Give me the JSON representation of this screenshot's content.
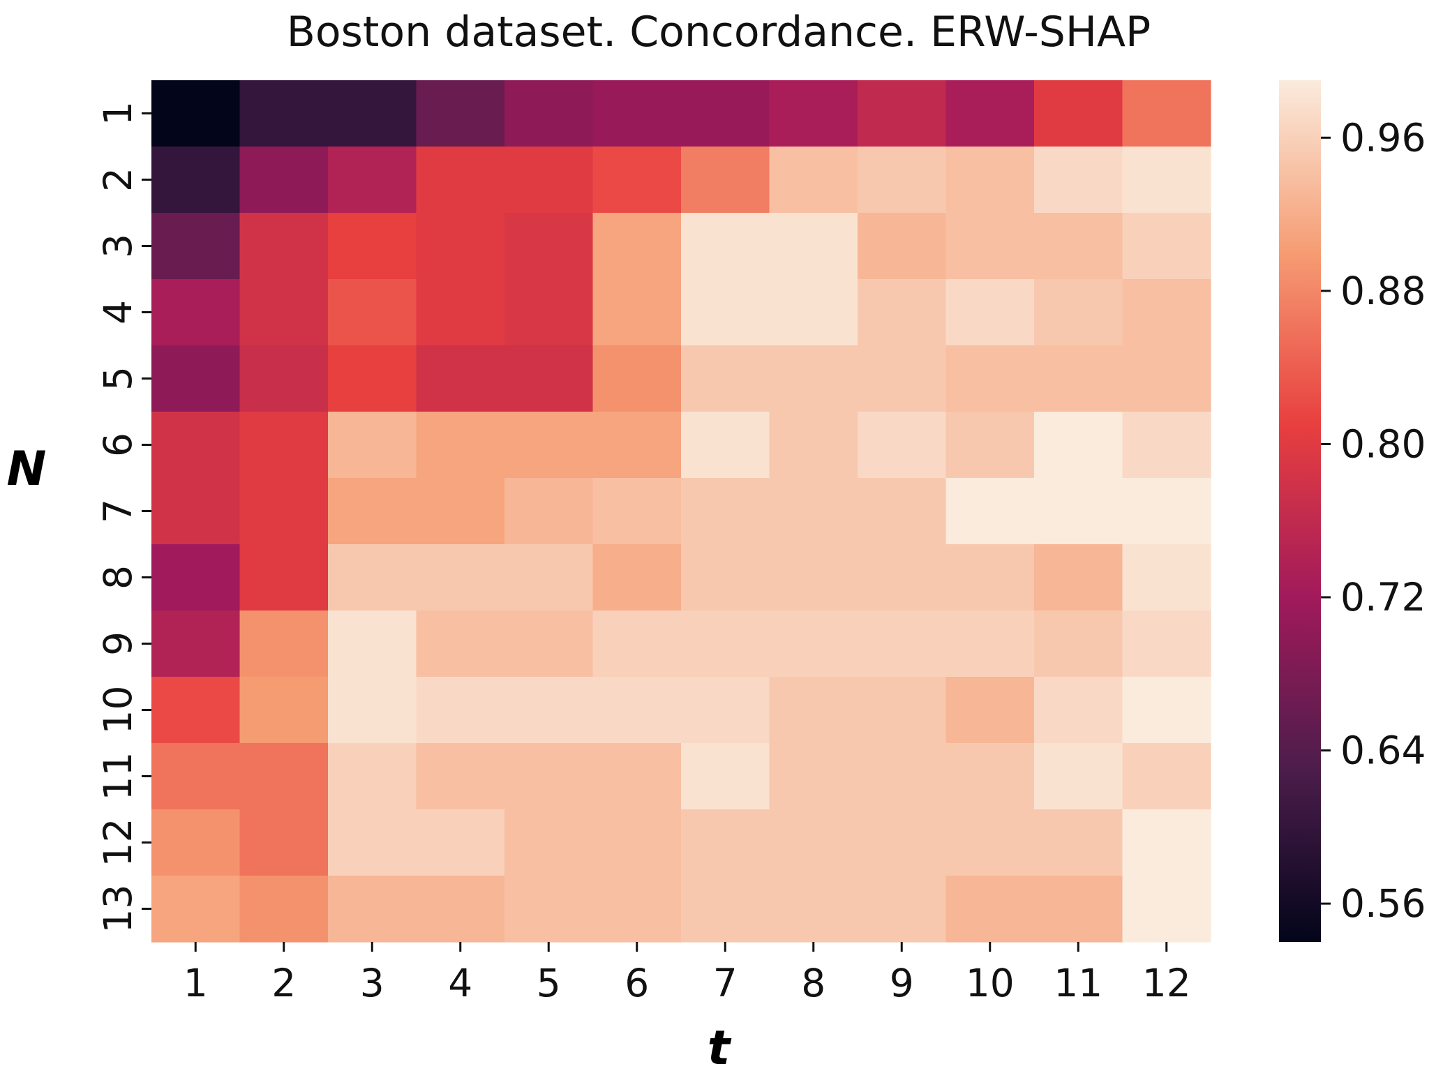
{
  "chart_data": {
    "type": "heatmap",
    "title": "Boston dataset. Concordance. ERW-SHAP",
    "xlabel": "t",
    "ylabel": "N",
    "x_categories": [
      "1",
      "2",
      "3",
      "4",
      "5",
      "6",
      "7",
      "8",
      "9",
      "10",
      "11",
      "12"
    ],
    "y_categories": [
      "1",
      "2",
      "3",
      "4",
      "5",
      "6",
      "7",
      "8",
      "9",
      "10",
      "11",
      "12",
      "13"
    ],
    "values": [
      [
        0.54,
        0.6,
        0.6,
        0.66,
        0.7,
        0.71,
        0.71,
        0.73,
        0.76,
        0.73,
        0.8,
        0.86
      ],
      [
        0.6,
        0.7,
        0.74,
        0.8,
        0.8,
        0.82,
        0.87,
        0.94,
        0.95,
        0.94,
        0.97,
        0.98
      ],
      [
        0.66,
        0.78,
        0.81,
        0.8,
        0.79,
        0.91,
        0.98,
        0.98,
        0.93,
        0.94,
        0.94,
        0.96
      ],
      [
        0.73,
        0.78,
        0.83,
        0.8,
        0.79,
        0.91,
        0.98,
        0.98,
        0.95,
        0.97,
        0.95,
        0.94
      ],
      [
        0.7,
        0.77,
        0.81,
        0.78,
        0.78,
        0.89,
        0.95,
        0.95,
        0.95,
        0.94,
        0.94,
        0.94
      ],
      [
        0.78,
        0.8,
        0.93,
        0.91,
        0.91,
        0.91,
        0.98,
        0.95,
        0.97,
        0.95,
        0.99,
        0.97
      ],
      [
        0.78,
        0.8,
        0.91,
        0.91,
        0.93,
        0.94,
        0.95,
        0.95,
        0.95,
        0.99,
        0.99,
        0.99
      ],
      [
        0.72,
        0.8,
        0.95,
        0.95,
        0.95,
        0.92,
        0.95,
        0.95,
        0.95,
        0.95,
        0.93,
        0.98
      ],
      [
        0.74,
        0.89,
        0.98,
        0.94,
        0.94,
        0.96,
        0.96,
        0.96,
        0.96,
        0.96,
        0.95,
        0.97
      ],
      [
        0.82,
        0.9,
        0.98,
        0.97,
        0.97,
        0.97,
        0.97,
        0.95,
        0.95,
        0.93,
        0.97,
        0.99
      ],
      [
        0.86,
        0.86,
        0.96,
        0.94,
        0.94,
        0.94,
        0.98,
        0.95,
        0.95,
        0.95,
        0.98,
        0.96
      ],
      [
        0.89,
        0.86,
        0.96,
        0.96,
        0.94,
        0.94,
        0.95,
        0.95,
        0.95,
        0.95,
        0.95,
        0.99
      ],
      [
        0.91,
        0.89,
        0.93,
        0.93,
        0.94,
        0.94,
        0.95,
        0.95,
        0.95,
        0.93,
        0.93,
        0.99
      ]
    ],
    "vmin": 0.54,
    "vmax": 0.99,
    "colorbar": {
      "ticks": [
        0.56,
        0.64,
        0.72,
        0.8,
        0.88,
        0.96
      ],
      "tick_labels": [
        "0.56",
        "0.64",
        "0.72",
        "0.80",
        "0.88",
        "0.96"
      ]
    },
    "colormap": "rocket",
    "colormap_stops": [
      "#03051a",
      "#4c1d4b",
      "#a11a5b",
      "#e83f3f",
      "#f69c73",
      "#faebdd"
    ],
    "grid": false
  }
}
